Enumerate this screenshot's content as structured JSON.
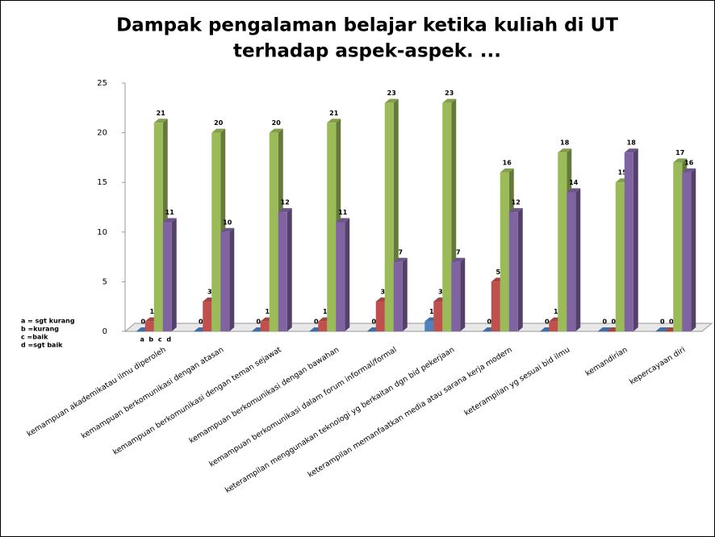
{
  "chart_data": {
    "type": "bar",
    "title": [
      "Dampak pengalaman belajar ketika kuliah  di UT",
      "terhadap aspek-aspek.  ..."
    ],
    "categories": [
      "kemampuan akademikatau ilmu diperoleh",
      "kemampuan berkomunikasi dengan atasan",
      "kemampuan berkomunikasi dengan  teman sejawat",
      "kemampuan berkomunikasi dengan bawahan",
      "kemampuan berkomunikasi dalam forum informal/formal",
      "keterampilan menggunakan teknologi yg berkaitan dgn bid pekerjaan",
      "keterampilan memanfaatkan media atau sarana kerja modern",
      "keterampilan yg sesuai bid ilmu",
      "kemandirian",
      "kepercayaan diri"
    ],
    "series": [
      {
        "name": "a",
        "color": "#4f81bd",
        "values": [
          0,
          0,
          0,
          0,
          0,
          1,
          0,
          0,
          0,
          0
        ]
      },
      {
        "name": "b",
        "color": "#c0504d",
        "values": [
          1,
          3,
          1,
          1,
          3,
          3,
          5,
          1,
          0,
          0
        ]
      },
      {
        "name": "c",
        "color": "#9bbb59",
        "values": [
          21,
          20,
          20,
          21,
          23,
          23,
          16,
          18,
          15,
          17
        ]
      },
      {
        "name": "d",
        "color": "#8064a2",
        "values": [
          11,
          10,
          12,
          11,
          7,
          7,
          12,
          14,
          18,
          16
        ]
      }
    ],
    "key": [
      "a = sgt kurang",
      "b =kurang",
      "c =baik",
      "d =sgt baik"
    ],
    "ylim": [
      0,
      25
    ],
    "yticks": [
      0,
      5,
      10,
      15,
      20,
      25
    ]
  }
}
